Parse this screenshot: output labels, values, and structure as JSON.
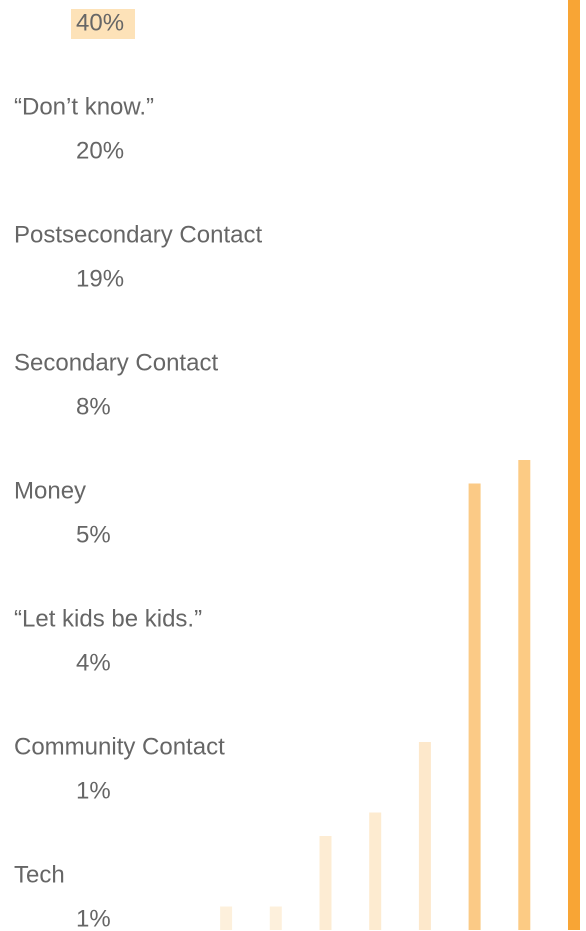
{
  "chart_data": {
    "type": "bar",
    "categories": [
      null,
      "“Don’t know.”",
      "Postsecondary Contact",
      "Secondary Contact",
      "Money",
      "“Let kids be kids.”",
      "Community Contact",
      "Tech"
    ],
    "values": [
      40,
      20,
      19,
      8,
      5,
      4,
      1,
      1
    ],
    "value_labels": [
      "40%",
      "20%",
      "19%",
      "8%",
      "5%",
      "4%",
      "1%",
      "1%"
    ],
    "colors": [
      "#f8a535",
      "#fccb84",
      "#fbca86",
      "#fde8cb",
      "#fdebd0",
      "#fdecd3",
      "#fdf0dc",
      "#fdf0dc"
    ]
  }
}
